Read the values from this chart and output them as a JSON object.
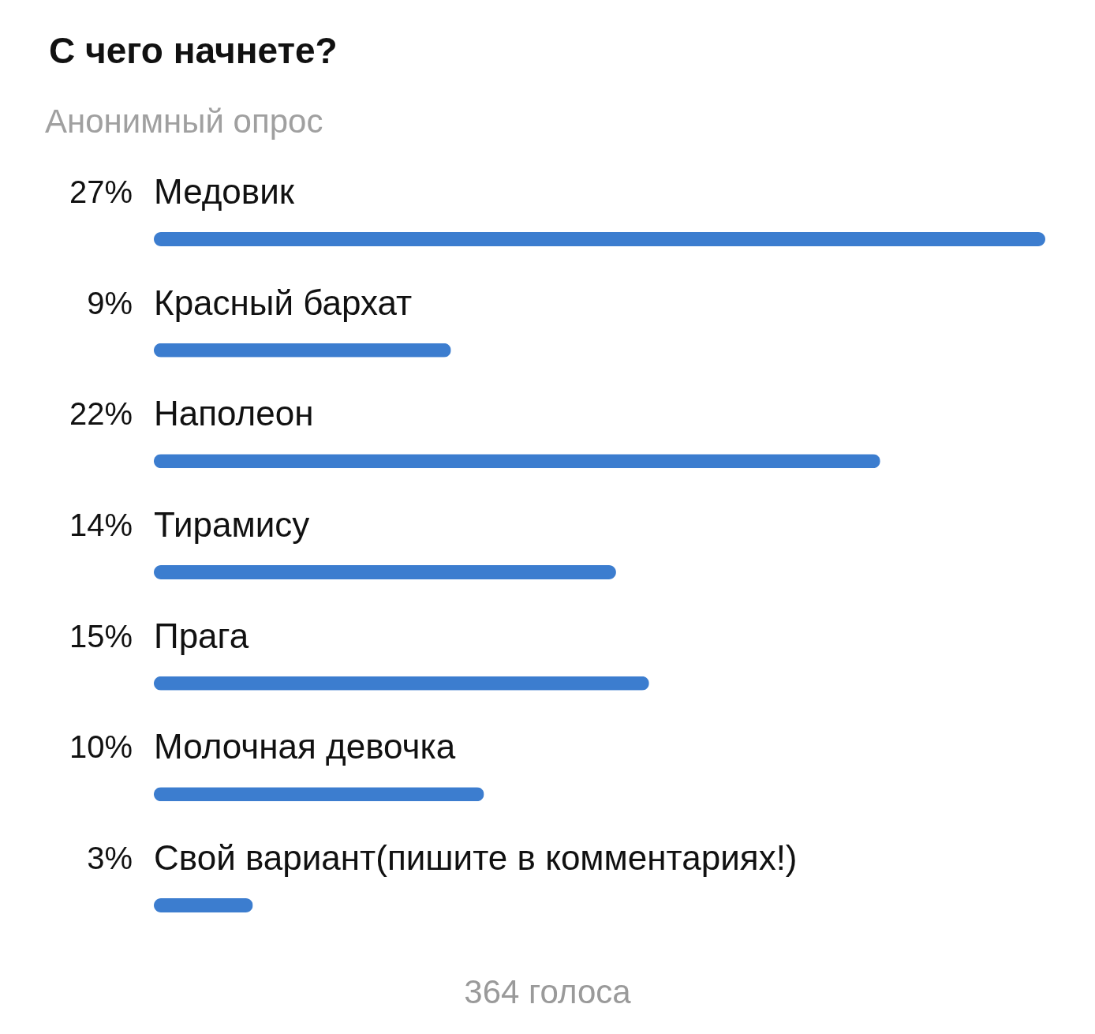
{
  "chart_data": {
    "type": "bar",
    "orientation": "horizontal",
    "title": "С чего начнете?",
    "subtitle": "Анонимный опрос",
    "categories": [
      "Медовик",
      "Красный бархат",
      "Наполеон",
      "Тирамису",
      "Прага",
      "Молочная девочка",
      "Свой вариант(пишите в комментариях!)"
    ],
    "values": [
      27,
      9,
      22,
      14,
      15,
      10,
      3
    ],
    "value_labels": [
      "27%",
      "9%",
      "22%",
      "14%",
      "15%",
      "10%",
      "3%"
    ],
    "color": "#3c7dcf",
    "annotations": [
      "364 голоса"
    ]
  }
}
